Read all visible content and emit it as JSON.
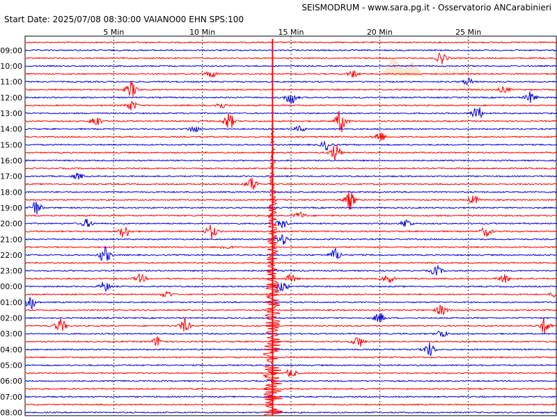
{
  "header": {
    "title": "SEISMODRUM - www.sara.pg.it - Osservatorio ANCarabinieri",
    "start_info": "Start Date: 2025/07/08 08:30:00 VAIANO00 EHN  SPS:100"
  },
  "watermark": {
    "text": "VAIANO",
    "subtext": "ANCarabinieri"
  },
  "colors": {
    "red": "#ff0000",
    "blue": "#0000dd",
    "grid": "#000000",
    "background": "#ffffff"
  },
  "chart_data": {
    "type": "line",
    "title": "SEISMODRUM - www.sara.pg.it - Osservatorio ANCarabinieri",
    "subtitle": "Start Date: 2025/07/08 08:30:00 VAIANO00 EHN  SPS:100",
    "x_unit": "min",
    "xlim": [
      0,
      30
    ],
    "x_ticks": [
      {
        "value": 5,
        "label": "5 Min"
      },
      {
        "value": 10,
        "label": "10 Min"
      },
      {
        "value": 15,
        "label": "15 Min"
      },
      {
        "value": 20,
        "label": "20 Min"
      },
      {
        "value": 25,
        "label": "25 Min"
      }
    ],
    "row_labels": [
      "09:00",
      "10:00",
      "11:00",
      "12:00",
      "13:00",
      "14:00",
      "15:00",
      "16:00",
      "17:00",
      "18:00",
      "19:00",
      "20:00",
      "21:00",
      "22:00",
      "23:00",
      "00:00",
      "01:00",
      "02:00",
      "03:00",
      "04:00",
      "05:00",
      "06:00",
      "07:00",
      "08:00"
    ],
    "traces_per_hour": 2,
    "trace_colors": [
      "red",
      "blue"
    ],
    "last_trace_end_min": 4.3,
    "events": [
      {
        "trace": 2,
        "min": 23.5,
        "amp": 0.8
      },
      {
        "trace": 4,
        "min": 10.5,
        "amp": 0.5
      },
      {
        "trace": 4,
        "min": 18.5,
        "amp": 0.5
      },
      {
        "trace": 5,
        "min": 25.0,
        "amp": 0.5
      },
      {
        "trace": 6,
        "min": 6.0,
        "amp": 1.2
      },
      {
        "trace": 6,
        "min": 27.0,
        "amp": 0.4
      },
      {
        "trace": 7,
        "min": 15.0,
        "amp": 1.0
      },
      {
        "trace": 7,
        "min": 28.5,
        "amp": 0.8
      },
      {
        "trace": 8,
        "min": 6.0,
        "amp": 0.7
      },
      {
        "trace": 8,
        "min": 11.0,
        "amp": 0.5
      },
      {
        "trace": 9,
        "min": 25.5,
        "amp": 1.0
      },
      {
        "trace": 10,
        "min": 4.0,
        "amp": 0.8
      },
      {
        "trace": 10,
        "min": 11.5,
        "amp": 1.2
      },
      {
        "trace": 10,
        "min": 17.8,
        "amp": 1.6
      },
      {
        "trace": 11,
        "min": 9.5,
        "amp": 0.5
      },
      {
        "trace": 11,
        "min": 15.5,
        "amp": 0.4
      },
      {
        "trace": 12,
        "min": 20.0,
        "amp": 0.8
      },
      {
        "trace": 13,
        "min": 17.0,
        "amp": 0.7
      },
      {
        "trace": 14,
        "min": 17.5,
        "amp": 1.2
      },
      {
        "trace": 17,
        "min": 3.0,
        "amp": 0.4
      },
      {
        "trace": 18,
        "min": 12.8,
        "amp": 1.0
      },
      {
        "trace": 20,
        "min": 18.3,
        "amp": 1.4
      },
      {
        "trace": 20,
        "min": 25.3,
        "amp": 0.6
      },
      {
        "trace": 21,
        "min": 0.6,
        "amp": 1.0
      },
      {
        "trace": 22,
        "min": 15.5,
        "amp": 0.5
      },
      {
        "trace": 23,
        "min": 3.5,
        "amp": 0.6
      },
      {
        "trace": 23,
        "min": 14.5,
        "amp": 0.6
      },
      {
        "trace": 23,
        "min": 21.5,
        "amp": 0.6
      },
      {
        "trace": 24,
        "min": 5.6,
        "amp": 0.9
      },
      {
        "trace": 24,
        "min": 10.5,
        "amp": 1.0
      },
      {
        "trace": 24,
        "min": 26.0,
        "amp": 0.7
      },
      {
        "trace": 25,
        "min": 14.5,
        "amp": 0.8
      },
      {
        "trace": 26,
        "min": 11.3,
        "amp": 0.3
      },
      {
        "trace": 27,
        "min": 4.5,
        "amp": 1.2
      },
      {
        "trace": 27,
        "min": 17.5,
        "amp": 0.9
      },
      {
        "trace": 29,
        "min": 23.2,
        "amp": 0.7
      },
      {
        "trace": 30,
        "min": 6.5,
        "amp": 0.6
      },
      {
        "trace": 30,
        "min": 15.0,
        "amp": 0.6
      },
      {
        "trace": 30,
        "min": 20.5,
        "amp": 0.6
      },
      {
        "trace": 30,
        "min": 27.0,
        "amp": 0.6
      },
      {
        "trace": 31,
        "min": 4.5,
        "amp": 0.7
      },
      {
        "trace": 31,
        "min": 14.5,
        "amp": 0.8
      },
      {
        "trace": 32,
        "min": 8.0,
        "amp": 0.5
      },
      {
        "trace": 32,
        "min": 30.0,
        "amp": 0.6
      },
      {
        "trace": 33,
        "min": 0.3,
        "amp": 1.0
      },
      {
        "trace": 34,
        "min": 23.5,
        "amp": 0.8
      },
      {
        "trace": 35,
        "min": 20.0,
        "amp": 0.7
      },
      {
        "trace": 36,
        "min": 2.0,
        "amp": 1.0
      },
      {
        "trace": 36,
        "min": 9.0,
        "amp": 1.0
      },
      {
        "trace": 36,
        "min": 29.3,
        "amp": 1.1
      },
      {
        "trace": 37,
        "min": 23.5,
        "amp": 0.6
      },
      {
        "trace": 38,
        "min": 7.5,
        "amp": 0.7
      },
      {
        "trace": 38,
        "min": 18.8,
        "amp": 0.8
      },
      {
        "trace": 39,
        "min": 22.8,
        "amp": 1.0
      },
      {
        "trace": 42,
        "min": 15.0,
        "amp": 0.6
      }
    ],
    "spike": {
      "start_trace": 5,
      "min": 13.8
    }
  }
}
